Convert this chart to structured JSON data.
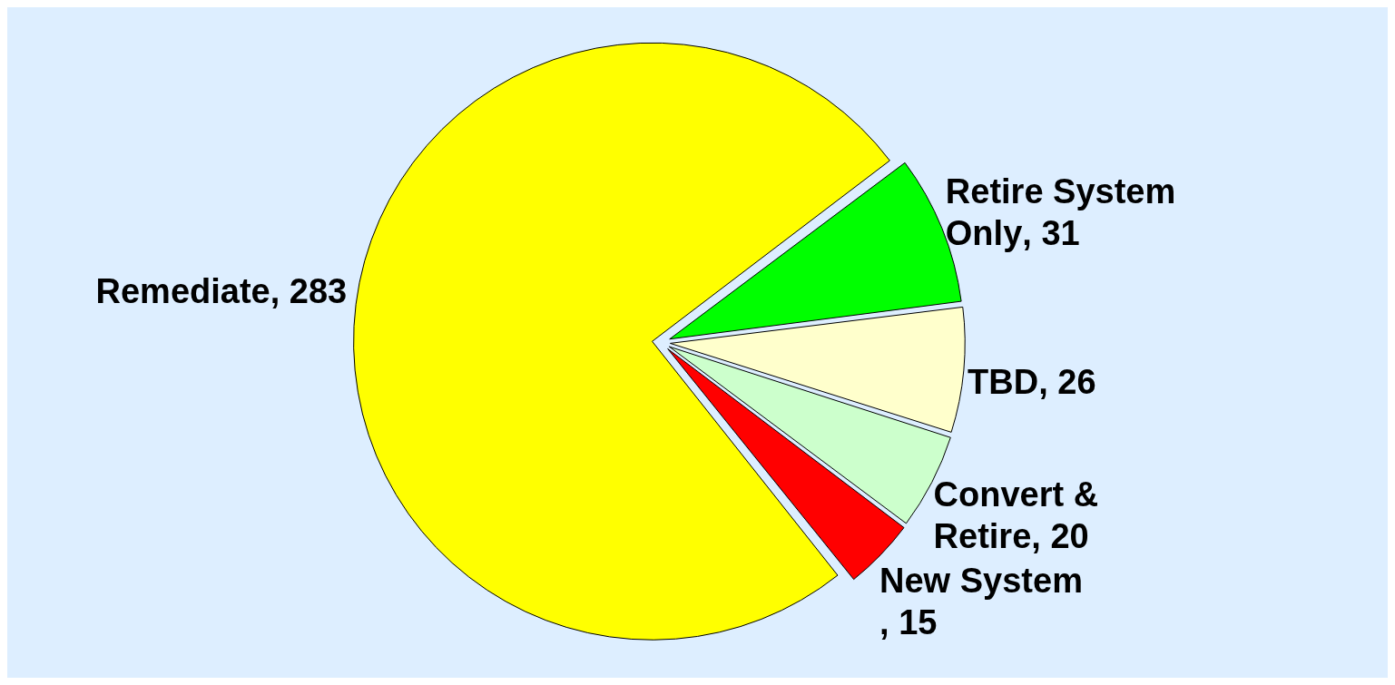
{
  "chart_data": {
    "type": "pie",
    "categories": [
      "Retire System Only",
      "TBD",
      "Convert & Retire",
      "New System",
      "Remediate"
    ],
    "values": [
      31,
      26,
      20,
      15,
      283
    ],
    "colors": [
      "#00ff00",
      "#ffffcc",
      "#ccffcc",
      "#ff0000",
      "#ffff00"
    ],
    "value_labels": [
      ", 31",
      ", 26",
      ", 20",
      ", 15",
      ", 283"
    ],
    "legend": false
  }
}
